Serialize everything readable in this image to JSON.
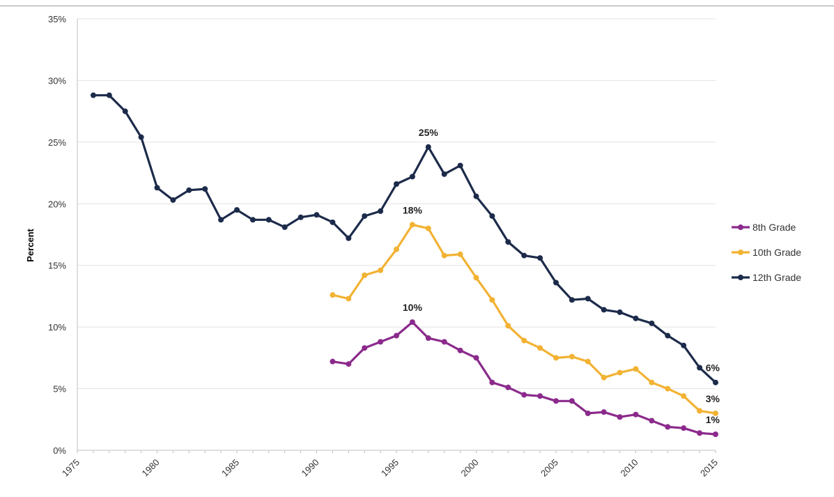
{
  "chart_data": {
    "type": "line",
    "ylabel": "Percent",
    "xlabel": "",
    "title": "",
    "ylim": [
      0,
      35
    ],
    "xlim": [
      1975,
      2015
    ],
    "y_ticks": [
      0,
      5,
      10,
      15,
      20,
      25,
      30,
      35
    ],
    "y_tick_labels": [
      "0%",
      "5%",
      "10%",
      "15%",
      "20%",
      "25%",
      "30%",
      "35%"
    ],
    "x_ticks": [
      1975,
      1980,
      1985,
      1990,
      1995,
      2000,
      2005,
      2010,
      2015
    ],
    "x_tick_labels": [
      "1975",
      "1980",
      "1985",
      "1990",
      "1995",
      "2000",
      "2005",
      "2010",
      "2015"
    ],
    "grid": "horizontal",
    "legend_position": "right",
    "series": [
      {
        "name": "8th Grade",
        "color": "#8B2A8C",
        "x": [
          1991,
          1992,
          1993,
          1994,
          1995,
          1996,
          1997,
          1998,
          1999,
          2000,
          2001,
          2002,
          2003,
          2004,
          2005,
          2006,
          2007,
          2008,
          2009,
          2010,
          2011,
          2012,
          2013,
          2014,
          2015
        ],
        "y": [
          7.2,
          7.0,
          8.3,
          8.8,
          9.3,
          10.4,
          9.1,
          8.8,
          8.1,
          7.5,
          5.5,
          5.1,
          4.5,
          4.4,
          4.0,
          4.0,
          3.0,
          3.1,
          2.7,
          2.9,
          2.4,
          1.9,
          1.8,
          1.4,
          1.3
        ]
      },
      {
        "name": "10th Grade",
        "color": "#F2B233",
        "x": [
          1991,
          1992,
          1993,
          1994,
          1995,
          1996,
          1997,
          1998,
          1999,
          2000,
          2001,
          2002,
          2003,
          2004,
          2005,
          2006,
          2007,
          2008,
          2009,
          2010,
          2011,
          2012,
          2013,
          2014,
          2015
        ],
        "y": [
          12.6,
          12.3,
          14.2,
          14.6,
          16.3,
          18.3,
          18.0,
          15.8,
          15.9,
          14.0,
          12.2,
          10.1,
          8.9,
          8.3,
          7.5,
          7.6,
          7.2,
          5.9,
          6.3,
          6.6,
          5.5,
          5.0,
          4.4,
          3.2,
          3.0
        ]
      },
      {
        "name": "12th Grade",
        "color": "#1C2B4A",
        "x": [
          1976,
          1977,
          1978,
          1979,
          1980,
          1981,
          1982,
          1983,
          1984,
          1985,
          1986,
          1987,
          1988,
          1989,
          1990,
          1991,
          1992,
          1993,
          1994,
          1995,
          1996,
          1997,
          1998,
          1999,
          2000,
          2001,
          2002,
          2003,
          2004,
          2005,
          2006,
          2007,
          2008,
          2009,
          2010,
          2011,
          2012,
          2013,
          2014,
          2015
        ],
        "y": [
          28.8,
          28.8,
          27.5,
          25.4,
          21.3,
          20.3,
          21.1,
          21.2,
          18.7,
          19.5,
          18.7,
          18.7,
          18.1,
          18.9,
          19.1,
          18.5,
          17.2,
          19.0,
          19.4,
          21.6,
          22.2,
          24.6,
          22.4,
          23.1,
          20.6,
          19.0,
          16.9,
          15.8,
          15.6,
          13.6,
          12.2,
          12.3,
          11.4,
          11.2,
          10.7,
          10.3,
          9.3,
          8.5,
          6.7,
          5.5
        ]
      }
    ],
    "annotations": [
      {
        "text": "25%",
        "x": 1997,
        "y": 24.6
      },
      {
        "text": "18%",
        "x": 1996,
        "y": 18.3
      },
      {
        "text": "10%",
        "x": 1996,
        "y": 10.4
      },
      {
        "text": "6%",
        "x": 2015,
        "y": 5.5
      },
      {
        "text": "3%",
        "x": 2015,
        "y": 3.0
      },
      {
        "text": "1%",
        "x": 2015,
        "y": 1.3
      }
    ]
  }
}
